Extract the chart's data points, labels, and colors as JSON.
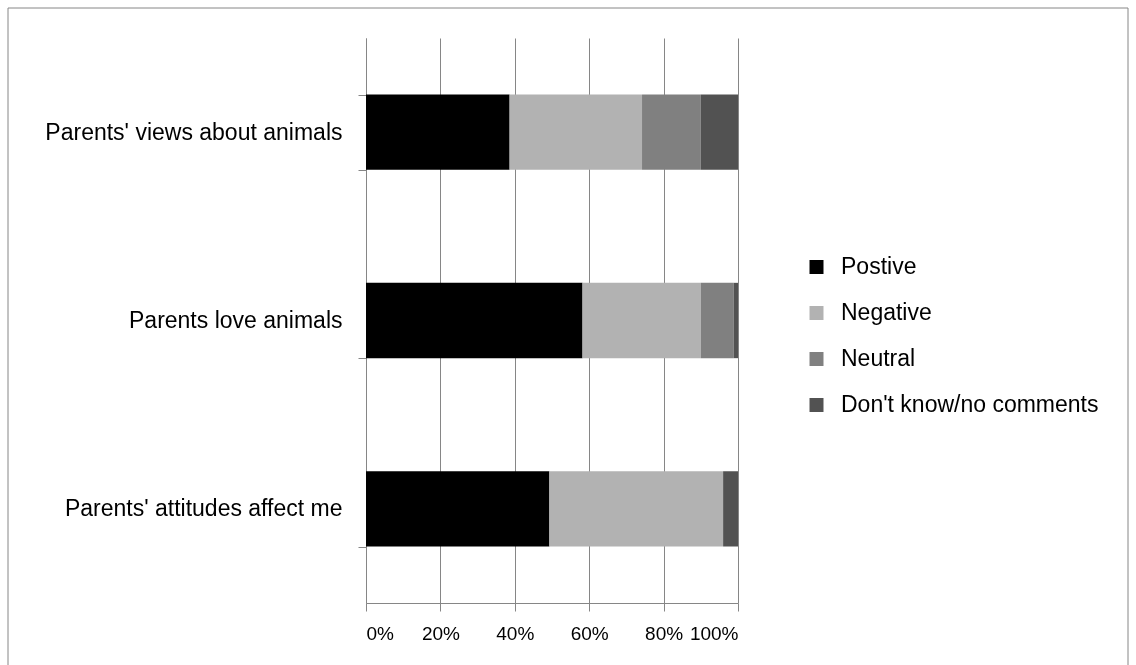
{
  "chart_data": {
    "type": "bar",
    "orientation": "horizontal",
    "stacked": true,
    "categories": [
      "Parents' views about animals",
      "Parents love animals",
      "Parents' attitudes affect me"
    ],
    "series": [
      {
        "name": "Postive",
        "color": "#000000",
        "values": [
          38.6,
          58.2,
          49.3
        ]
      },
      {
        "name": "Negative",
        "color": "#b2b2b2",
        "values": [
          35.6,
          31.8,
          46.7
        ]
      },
      {
        "name": "Neutral",
        "color": "#808080",
        "values": [
          15.8,
          8.8,
          0
        ]
      },
      {
        "name": "Don't know/no comments",
        "color": "#525252",
        "values": [
          10.0,
          1.2,
          4.0
        ]
      }
    ],
    "xlim": [
      0,
      100
    ],
    "xticks": [
      {
        "value": 0,
        "label": "0%"
      },
      {
        "value": 20,
        "label": "20%"
      },
      {
        "value": 40,
        "label": "40%"
      },
      {
        "value": 60,
        "label": "60%"
      },
      {
        "value": 80,
        "label": "80%"
      },
      {
        "value": 100,
        "label": "100%"
      }
    ],
    "grid": "x",
    "legend": "right"
  }
}
